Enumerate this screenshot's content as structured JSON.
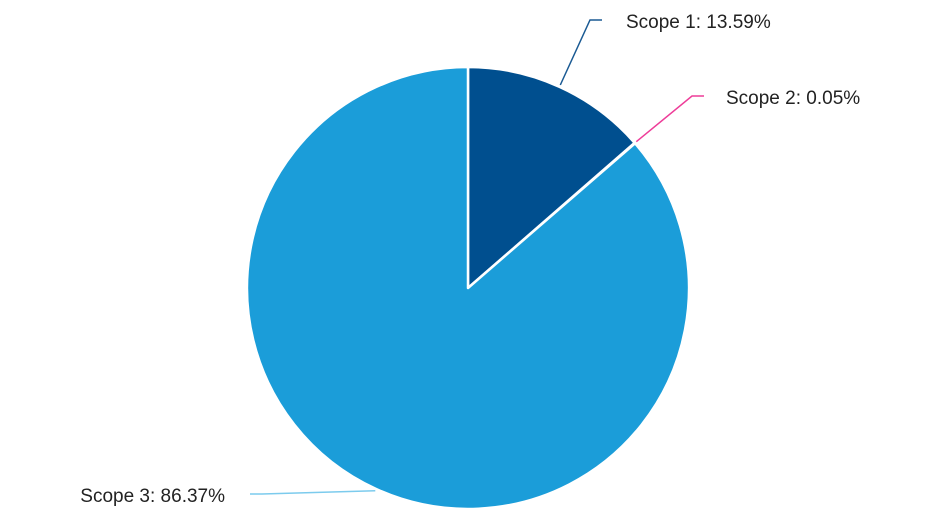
{
  "chart_data": {
    "type": "pie",
    "title": "",
    "slices": [
      {
        "name": "Scope 1",
        "value": 13.59,
        "label": "Scope 1: 13.59%",
        "color": "#004f8f",
        "leader_color": "#1a5a93"
      },
      {
        "name": "Scope 2",
        "value": 0.05,
        "label": "Scope 2: 0.05%",
        "color": "#ff0099",
        "leader_color": "#ee3d99"
      },
      {
        "name": "Scope 3",
        "value": 86.37,
        "label": "Scope 3: 86.37%",
        "color": "#1b9dd9",
        "leader_color": "#7ccbed"
      }
    ],
    "start_angle": "12 o'clock",
    "direction": "clockwise",
    "slice_border_color": "#ffffff",
    "legend": "none",
    "label_style": "outside labels with leader lines"
  }
}
